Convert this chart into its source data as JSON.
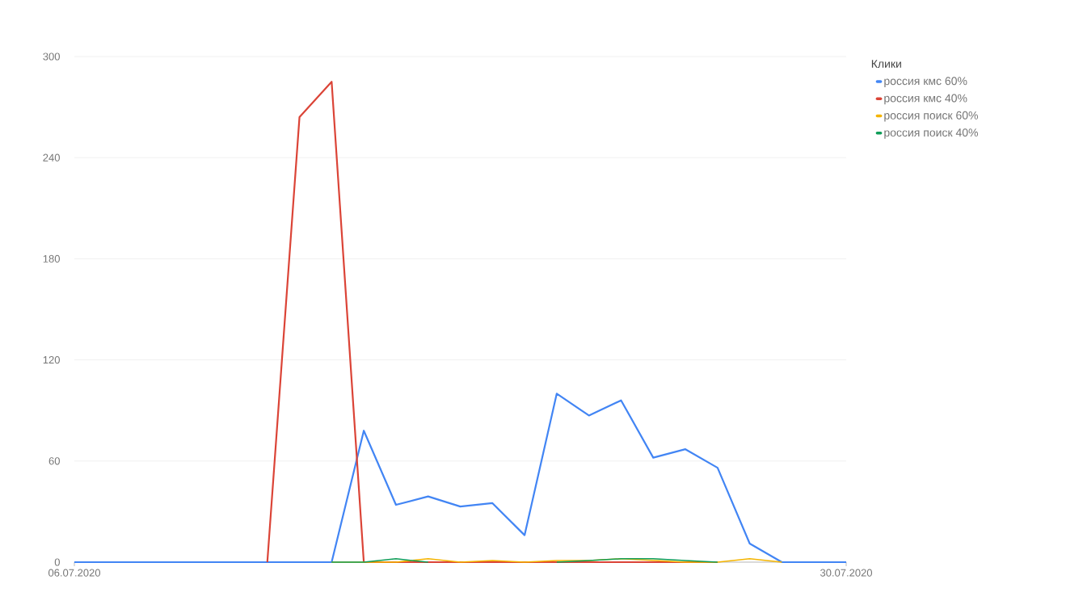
{
  "chart_data": {
    "type": "line",
    "legend_title": "Клики",
    "x": [
      "2020-07-06",
      "2020-07-07",
      "2020-07-08",
      "2020-07-09",
      "2020-07-10",
      "2020-07-11",
      "2020-07-12",
      "2020-07-13",
      "2020-07-14",
      "2020-07-15",
      "2020-07-16",
      "2020-07-17",
      "2020-07-18",
      "2020-07-19",
      "2020-07-20",
      "2020-07-21",
      "2020-07-22",
      "2020-07-23",
      "2020-07-24",
      "2020-07-25",
      "2020-07-26",
      "2020-07-27",
      "2020-07-28",
      "2020-07-29",
      "2020-07-30"
    ],
    "series": [
      {
        "name": "россия кмс 60%",
        "color": "#4285f4",
        "values": [
          0,
          0,
          0,
          0,
          0,
          0,
          0,
          0,
          0,
          78,
          34,
          39,
          33,
          35,
          16,
          100,
          87,
          96,
          62,
          67,
          56,
          11,
          0,
          0,
          0
        ]
      },
      {
        "name": "россия кмс 40%",
        "color": "#db4437",
        "values": [
          null,
          null,
          null,
          null,
          null,
          null,
          0,
          264,
          285,
          0,
          0,
          0,
          0,
          0,
          0,
          0,
          0,
          0,
          0,
          0,
          0,
          null,
          null,
          null,
          null
        ]
      },
      {
        "name": "россия поиск 60%",
        "color": "#f4b400",
        "values": [
          null,
          null,
          null,
          null,
          null,
          null,
          null,
          null,
          0,
          0,
          0,
          2,
          0,
          1,
          0,
          1,
          1,
          2,
          1,
          0,
          0,
          2,
          0,
          null,
          null
        ]
      },
      {
        "name": "россия поиск 40%",
        "color": "#0f9d58",
        "values": [
          null,
          null,
          null,
          null,
          null,
          null,
          null,
          null,
          0,
          0,
          2,
          0,
          null,
          null,
          null,
          0,
          1,
          2,
          2,
          1,
          0,
          null,
          null,
          null,
          null
        ]
      }
    ],
    "xlim": [
      "2020-07-06",
      "2020-07-30"
    ],
    "xticks": [
      {
        "value": "2020-07-06",
        "label": "06.07.2020"
      },
      {
        "value": "2020-07-30",
        "label": "30.07.2020"
      }
    ],
    "ylim": [
      0,
      300
    ],
    "yticks": [
      0,
      60,
      120,
      180,
      240,
      300
    ],
    "grid": "y",
    "legend": "right",
    "marker": "none",
    "line_style": "solid"
  }
}
